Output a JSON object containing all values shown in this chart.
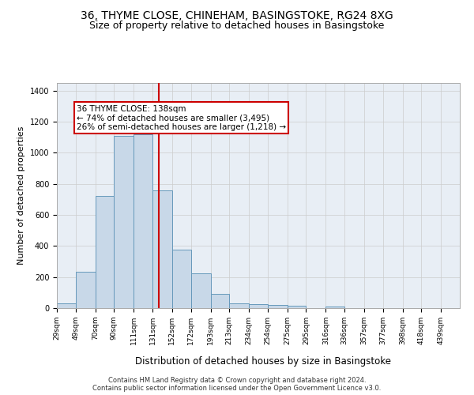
{
  "title1": "36, THYME CLOSE, CHINEHAM, BASINGSTOKE, RG24 8XG",
  "title2": "Size of property relative to detached houses in Basingstoke",
  "xlabel": "Distribution of detached houses by size in Basingstoke",
  "ylabel": "Number of detached properties",
  "footnote1": "Contains HM Land Registry data © Crown copyright and database right 2024.",
  "footnote2": "Contains public sector information licensed under the Open Government Licence v3.0.",
  "bin_labels": [
    "29sqm",
    "49sqm",
    "70sqm",
    "90sqm",
    "111sqm",
    "131sqm",
    "152sqm",
    "172sqm",
    "193sqm",
    "213sqm",
    "234sqm",
    "254sqm",
    "275sqm",
    "295sqm",
    "316sqm",
    "336sqm",
    "357sqm",
    "377sqm",
    "398sqm",
    "418sqm",
    "439sqm"
  ],
  "bar_values": [
    30,
    235,
    725,
    1110,
    1120,
    760,
    375,
    225,
    90,
    30,
    25,
    20,
    15,
    0,
    10,
    0,
    0,
    0,
    0,
    0
  ],
  "bar_color": "#c8d8e8",
  "bar_edge_color": "#6699bb",
  "vline_x": 138,
  "vline_color": "#cc0000",
  "annotation_line1": "36 THYME CLOSE: 138sqm",
  "annotation_line2": "← 74% of detached houses are smaller (3,495)",
  "annotation_line3": "26% of semi-detached houses are larger (1,218) →",
  "annotation_box_color": "#ffffff",
  "annotation_box_edge": "#cc0000",
  "ylim": [
    0,
    1450
  ],
  "bin_edges": [
    29,
    49,
    70,
    90,
    111,
    131,
    152,
    172,
    193,
    213,
    234,
    254,
    275,
    295,
    316,
    336,
    357,
    377,
    398,
    418,
    439
  ],
  "grid_color": "#cccccc",
  "bg_color": "#e8eef5",
  "title1_fontsize": 10,
  "title2_fontsize": 9,
  "xlabel_fontsize": 8.5,
  "ylabel_fontsize": 8,
  "tick_fontsize": 6.5,
  "footnote_fontsize": 6,
  "annotation_fontsize": 7.5
}
